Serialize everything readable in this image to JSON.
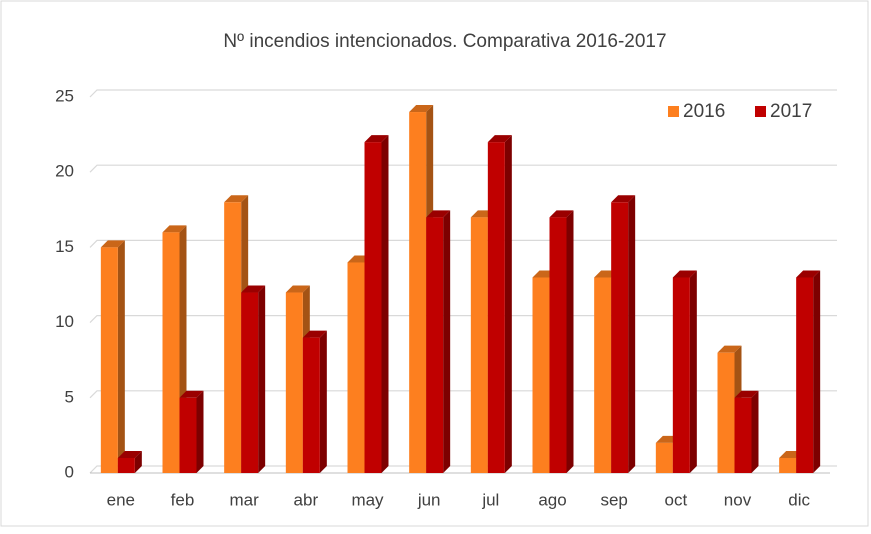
{
  "chart_data": {
    "type": "bar",
    "title": "Nº incendios intencionados. Comparativa 2016-2017",
    "categories": [
      "ene",
      "feb",
      "mar",
      "abr",
      "may",
      "jun",
      "jul",
      "ago",
      "sep",
      "oct",
      "nov",
      "dic"
    ],
    "series": [
      {
        "name": "2016",
        "color": "#fd7f1f",
        "values": [
          15,
          16,
          18,
          12,
          14,
          24,
          17,
          13,
          13,
          2,
          8,
          1
        ]
      },
      {
        "name": "2017",
        "color": "#c00000",
        "values": [
          1,
          5,
          12,
          9,
          22,
          17,
          22,
          17,
          18,
          13,
          5,
          13
        ]
      }
    ],
    "ylim": [
      0,
      25
    ],
    "yticks": [
      0,
      5,
      10,
      15,
      20,
      25
    ],
    "grid": true,
    "legend": "top-right"
  }
}
